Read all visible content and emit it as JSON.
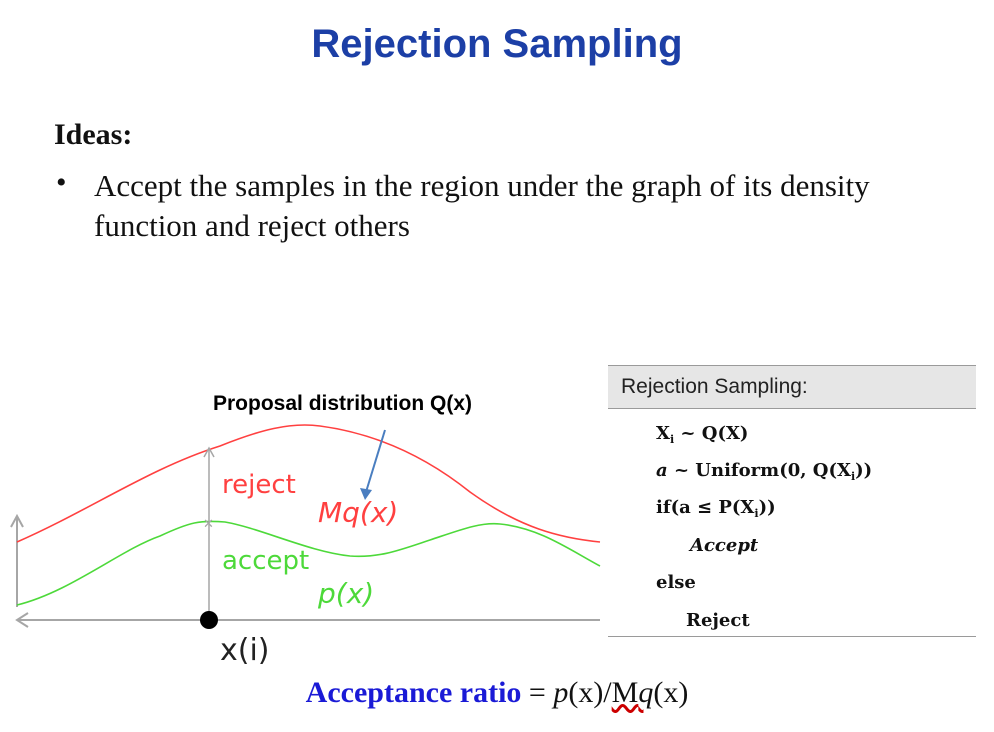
{
  "slide": {
    "title": "Rejection Sampling",
    "ideas_heading": "Ideas:",
    "bullet_symbol": "•",
    "bullet_text": "Accept the samples in the region under the graph of its density function and reject others"
  },
  "figure": {
    "proposal_label": "Proposal distribution Q(x)",
    "reject_label": "reject",
    "accept_label": "accept",
    "mq_label": "Mq(x)",
    "px_label": "p(x)",
    "xi_label": "x(i)",
    "colors": {
      "upper_curve": "#ff4040",
      "lower_curve": "#4dd93a",
      "arrow": "#4a7ec0",
      "axis": "#a6a6a6"
    }
  },
  "algorithm": {
    "header": "Rejection Sampling:",
    "line1": {
      "var": "X",
      "sub": "i",
      "rest": " ~ Q(X)"
    },
    "line2": {
      "var": "a",
      "rest": " ~ Uniform(0, Q(X",
      "sub": "i",
      "end": "))"
    },
    "line3": {
      "pre": "if(a ≤ P(X",
      "sub": "i",
      "end": "))"
    },
    "line4": "Accept",
    "line5": "else",
    "line6": "Reject"
  },
  "ratio": {
    "label": "Acceptance ratio",
    "eq": " = ",
    "p": "p",
    "x1": "(x)/",
    "M": "M",
    "q": "q",
    "x2": "(x)"
  }
}
